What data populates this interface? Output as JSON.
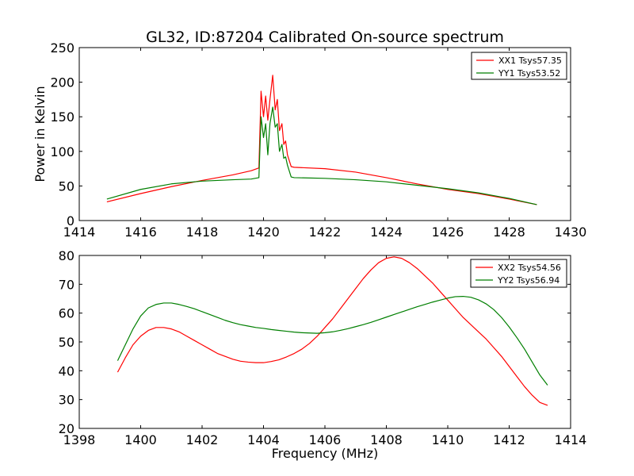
{
  "title": "GL32, ID:87204 Calibrated On-source spectrum",
  "chart_data": [
    {
      "type": "line",
      "title": "GL32, ID:87204 Calibrated On-source spectrum",
      "xlabel": "",
      "ylabel": "Power in Kelvin",
      "xlim": [
        1414,
        1430
      ],
      "ylim": [
        0,
        250
      ],
      "xticks": [
        1414,
        1416,
        1418,
        1420,
        1422,
        1424,
        1426,
        1428,
        1430
      ],
      "yticks": [
        0,
        50,
        100,
        150,
        200,
        250
      ],
      "grid": false,
      "legend": "top-right",
      "series": [
        {
          "name": "XX1 Tsys57.35",
          "color": "#ff0000",
          "x": [
            1414.9,
            1416.0,
            1417.0,
            1418.0,
            1419.0,
            1419.6,
            1419.85,
            1419.92,
            1420.0,
            1420.07,
            1420.14,
            1420.21,
            1420.3,
            1420.38,
            1420.45,
            1420.52,
            1420.6,
            1420.66,
            1420.72,
            1420.78,
            1420.9,
            1421.0,
            1422.0,
            1423.0,
            1424.0,
            1425.0,
            1426.0,
            1427.0,
            1428.0,
            1428.9
          ],
          "y": [
            27,
            39,
            49,
            58,
            66,
            72,
            76,
            187,
            150,
            180,
            145,
            175,
            210,
            160,
            175,
            130,
            140,
            110,
            115,
            95,
            78,
            77,
            75,
            70,
            62,
            53,
            45,
            39,
            31,
            23
          ]
        },
        {
          "name": "YY1 Tsys53.52",
          "color": "#007f00",
          "x": [
            1414.9,
            1416.0,
            1417.0,
            1418.0,
            1419.0,
            1419.6,
            1419.85,
            1419.92,
            1420.0,
            1420.07,
            1420.14,
            1420.21,
            1420.3,
            1420.38,
            1420.45,
            1420.52,
            1420.6,
            1420.66,
            1420.72,
            1420.78,
            1420.9,
            1421.0,
            1422.0,
            1423.0,
            1424.0,
            1425.0,
            1426.0,
            1427.0,
            1428.0,
            1428.9
          ],
          "y": [
            31,
            45,
            53,
            57,
            59,
            60,
            62,
            150,
            120,
            140,
            95,
            140,
            164,
            135,
            140,
            100,
            110,
            90,
            92,
            80,
            63,
            62,
            61,
            59,
            56,
            51,
            46,
            40,
            32,
            23
          ]
        }
      ]
    },
    {
      "type": "line",
      "title": "",
      "xlabel": "Frequency (MHz)",
      "ylabel": "",
      "xlim": [
        1398,
        1414
      ],
      "ylim": [
        20,
        80
      ],
      "xticks": [
        1398,
        1400,
        1402,
        1404,
        1406,
        1408,
        1410,
        1412,
        1414
      ],
      "yticks": [
        20,
        30,
        40,
        50,
        60,
        70,
        80
      ],
      "grid": false,
      "legend": "top-right",
      "series": [
        {
          "name": "XX2 Tsys54.56",
          "color": "#ff0000",
          "x": [
            1399.25,
            1399.5,
            1399.75,
            1400.0,
            1400.25,
            1400.5,
            1400.75,
            1401.0,
            1401.25,
            1401.5,
            1401.75,
            1402.0,
            1402.25,
            1402.5,
            1402.75,
            1403.0,
            1403.25,
            1403.5,
            1403.75,
            1404.0,
            1404.25,
            1404.5,
            1404.75,
            1405.0,
            1405.25,
            1405.5,
            1405.75,
            1406.0,
            1406.25,
            1406.5,
            1406.75,
            1407.0,
            1407.25,
            1407.5,
            1407.75,
            1408.0,
            1408.25,
            1408.5,
            1408.75,
            1409.0,
            1409.25,
            1409.5,
            1409.75,
            1410.0,
            1410.25,
            1410.5,
            1410.75,
            1411.0,
            1411.25,
            1411.5,
            1411.75,
            1412.0,
            1412.25,
            1412.5,
            1412.75,
            1413.0,
            1413.25
          ],
          "y": [
            39.5,
            44.5,
            49.0,
            52.0,
            54.0,
            55.0,
            55.0,
            54.5,
            53.5,
            52.0,
            50.5,
            49.0,
            47.5,
            46.0,
            45.0,
            44.0,
            43.3,
            43.0,
            42.8,
            42.8,
            43.2,
            43.8,
            44.8,
            46.0,
            47.5,
            49.5,
            52.0,
            55.0,
            58.0,
            61.5,
            65.0,
            68.5,
            72.0,
            75.0,
            77.5,
            79.0,
            79.5,
            79.0,
            77.5,
            75.5,
            73.0,
            70.5,
            67.5,
            64.5,
            61.5,
            58.5,
            56.0,
            53.5,
            51.0,
            48.0,
            45.0,
            41.5,
            38.0,
            34.5,
            31.5,
            29.0,
            28.0
          ]
        },
        {
          "name": "YY2 Tsys56.94",
          "color": "#007f00",
          "x": [
            1399.25,
            1399.5,
            1399.75,
            1400.0,
            1400.25,
            1400.5,
            1400.75,
            1401.0,
            1401.25,
            1401.5,
            1401.75,
            1402.0,
            1402.25,
            1402.5,
            1402.75,
            1403.0,
            1403.25,
            1403.5,
            1403.75,
            1404.0,
            1404.25,
            1404.5,
            1404.75,
            1405.0,
            1405.25,
            1405.5,
            1405.75,
            1406.0,
            1406.25,
            1406.5,
            1406.75,
            1407.0,
            1407.25,
            1407.5,
            1407.75,
            1408.0,
            1408.25,
            1408.5,
            1408.75,
            1409.0,
            1409.25,
            1409.5,
            1409.75,
            1410.0,
            1410.25,
            1410.5,
            1410.75,
            1411.0,
            1411.25,
            1411.5,
            1411.75,
            1412.0,
            1412.25,
            1412.5,
            1412.75,
            1413.0,
            1413.25
          ],
          "y": [
            43.5,
            49.0,
            54.5,
            59.0,
            61.8,
            63.0,
            63.5,
            63.5,
            63.0,
            62.3,
            61.5,
            60.5,
            59.5,
            58.5,
            57.5,
            56.7,
            56.0,
            55.5,
            55.0,
            54.7,
            54.3,
            54.0,
            53.7,
            53.4,
            53.2,
            53.1,
            53.0,
            53.2,
            53.5,
            54.0,
            54.6,
            55.3,
            56.0,
            56.8,
            57.7,
            58.6,
            59.5,
            60.4,
            61.3,
            62.2,
            63.0,
            63.8,
            64.5,
            65.2,
            65.7,
            65.8,
            65.5,
            64.6,
            63.2,
            61.2,
            58.5,
            55.2,
            51.5,
            47.5,
            43.0,
            38.5,
            35.0
          ]
        }
      ]
    }
  ]
}
